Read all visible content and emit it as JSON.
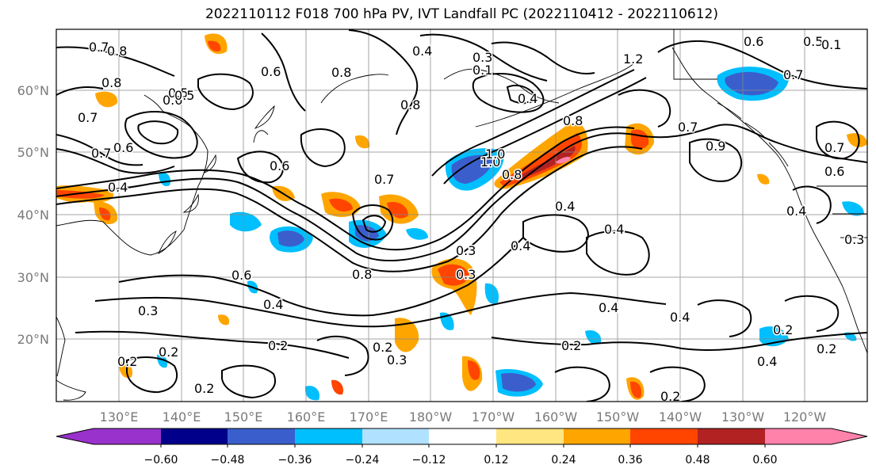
{
  "title": "2022110112 F018 700 hPa PV, IVT Landfall PC (2022110412 - 2022110612)",
  "lat_labels": [
    "60°N",
    "50°N",
    "40°N",
    "30°N",
    "20°N"
  ],
  "lon_labels": [
    "130°E",
    "140°E",
    "150°E",
    "160°E",
    "170°E",
    "180°W",
    "170°W",
    "160°W",
    "150°W",
    "140°W",
    "130°W",
    "120°W"
  ],
  "colorbar": {
    "ticks": [
      "−0.60",
      "−0.48",
      "−0.36",
      "−0.24",
      "−0.12",
      "0.12",
      "0.24",
      "0.36",
      "0.48",
      "0.60"
    ],
    "colors": [
      "#9932cc",
      "#00008b",
      "#3a5fcd",
      "#00bfff",
      "#b0e2ff",
      "#ffffff",
      "#ffe680",
      "#ffa500",
      "#ff4500",
      "#b22222",
      "#ff82ab"
    ]
  },
  "contour_labels": [
    "0.7",
    "0.8",
    "0.6",
    "0.5",
    "0.8",
    "0.4",
    "0.3",
    "0.1",
    "0.4",
    "1.2",
    "0.6",
    "0.5",
    "0.7",
    "0.8",
    "0.8",
    "0.8",
    "0.7",
    "0.7",
    "0.6",
    "0.4",
    "0.3",
    "1.0",
    "0.8",
    "0.8",
    "0.5",
    "1.0",
    "0.6",
    "0.7",
    "0.4",
    "0.4",
    "0.7",
    "0.6",
    "0.4",
    "0.3",
    "0.6",
    "0.6",
    "0.3",
    "0.4",
    "0.3",
    "0.4",
    "0.4",
    "0.2",
    "0.2",
    "0.2",
    "0.3",
    "0.2",
    "0.2",
    "0.2",
    "0.2",
    "0.2",
    "0.4",
    "0.2",
    "0.4",
    "0.1",
    "0.9",
    "0.7"
  ]
}
